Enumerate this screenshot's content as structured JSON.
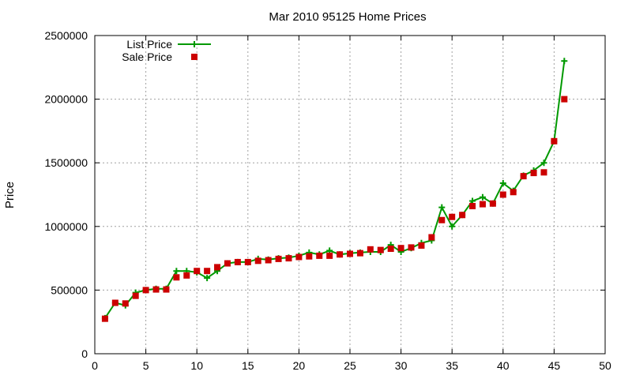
{
  "chart_data": {
    "type": "line",
    "title": "Mar 2010 95125 Home Prices",
    "xlabel": "",
    "ylabel": "Price",
    "xlim": [
      0,
      50
    ],
    "ylim": [
      0,
      2500000
    ],
    "xticks": [
      0,
      5,
      10,
      15,
      20,
      25,
      30,
      35,
      40,
      45,
      50
    ],
    "yticks": [
      0,
      500000,
      1000000,
      1500000,
      2000000,
      2500000
    ],
    "grid": true,
    "legend_position": "top-left",
    "series": [
      {
        "name": "List Price",
        "style": "line-plus",
        "color": "#009900",
        "x": [
          1,
          2,
          3,
          4,
          5,
          6,
          7,
          8,
          9,
          10,
          11,
          12,
          13,
          14,
          15,
          16,
          17,
          18,
          19,
          20,
          21,
          22,
          23,
          24,
          25,
          26,
          27,
          28,
          29,
          30,
          31,
          32,
          33,
          34,
          35,
          36,
          37,
          38,
          39,
          40,
          41,
          42,
          43,
          44,
          45,
          46
        ],
        "y": [
          280000,
          400000,
          380000,
          480000,
          500000,
          510000,
          510000,
          650000,
          650000,
          640000,
          595000,
          650000,
          710000,
          720000,
          720000,
          745000,
          740000,
          750000,
          755000,
          770000,
          795000,
          780000,
          810000,
          780000,
          790000,
          795000,
          800000,
          800000,
          855000,
          800000,
          830000,
          870000,
          890000,
          1150000,
          1000000,
          1090000,
          1200000,
          1230000,
          1180000,
          1340000,
          1280000,
          1400000,
          1440000,
          1500000,
          1670000,
          2300000
        ]
      },
      {
        "name": "Sale Price",
        "style": "square",
        "color": "#cc0000",
        "x": [
          1,
          2,
          3,
          4,
          5,
          6,
          7,
          8,
          9,
          10,
          11,
          12,
          13,
          14,
          15,
          16,
          17,
          18,
          19,
          20,
          21,
          22,
          23,
          24,
          25,
          26,
          27,
          28,
          29,
          30,
          31,
          32,
          33,
          34,
          35,
          36,
          37,
          38,
          39,
          40,
          41,
          42,
          43,
          44,
          45,
          46
        ],
        "y": [
          275000,
          400000,
          395000,
          455000,
          500000,
          505000,
          505000,
          600000,
          615000,
          650000,
          650000,
          680000,
          710000,
          720000,
          720000,
          730000,
          735000,
          745000,
          750000,
          760000,
          765000,
          770000,
          770000,
          780000,
          785000,
          790000,
          820000,
          815000,
          825000,
          830000,
          835000,
          850000,
          915000,
          1050000,
          1075000,
          1090000,
          1160000,
          1175000,
          1180000,
          1250000,
          1270000,
          1395000,
          1420000,
          1425000,
          1670000,
          2000000
        ]
      }
    ]
  }
}
